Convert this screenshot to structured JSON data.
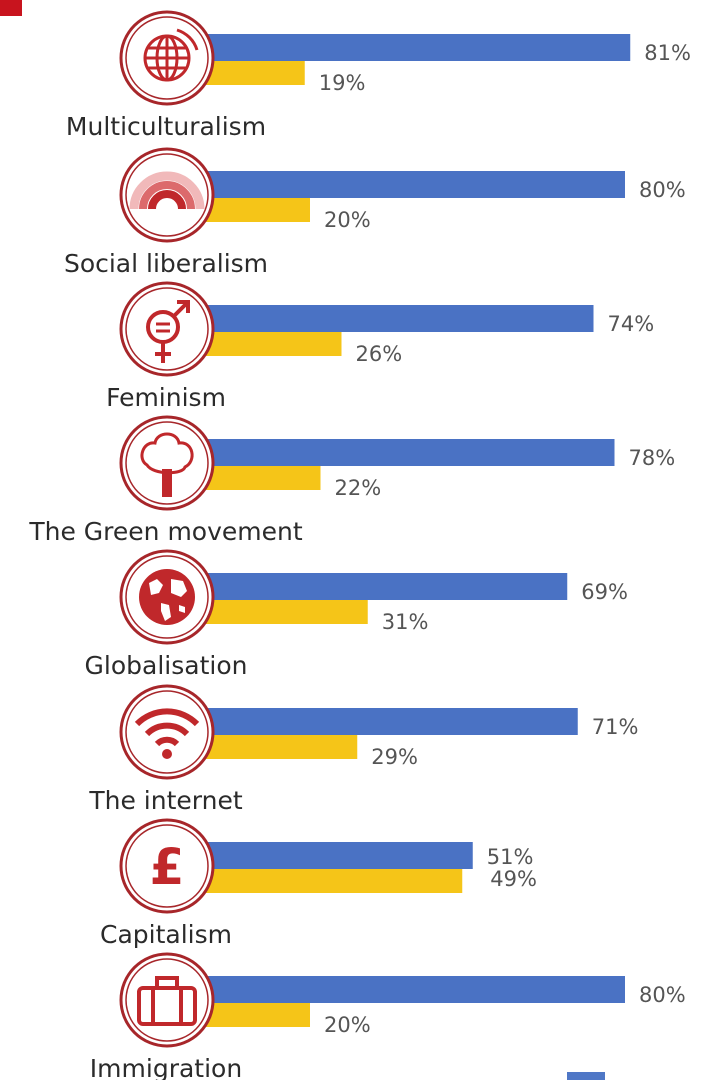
{
  "colors": {
    "series_a": "#4a72c4",
    "series_b": "#f5c518",
    "icon_red": "#c0282b",
    "icon_ring": "#a7262a"
  },
  "chart_data": {
    "type": "bar",
    "orientation": "horizontal",
    "categories": [
      "Multiculturalism",
      "Social liberalism",
      "Feminism",
      "The Green movement",
      "Globalisation",
      "The internet",
      "Capitalism",
      "Immigration"
    ],
    "category_icons": [
      "globe-icon",
      "rainbow-icon",
      "gender-symbol-icon",
      "tree-icon",
      "world-map-icon",
      "wifi-icon",
      "pound-sign-icon",
      "suitcase-icon"
    ],
    "series": [
      {
        "values": [
          81,
          80,
          74,
          78,
          69,
          71,
          51,
          80
        ],
        "labels": [
          "81%",
          "80%",
          "74%",
          "78%",
          "69%",
          "71%",
          "51%",
          "80%"
        ]
      },
      {
        "values": [
          19,
          20,
          26,
          22,
          31,
          29,
          49,
          20
        ],
        "labels": [
          "19%",
          "20%",
          "26%",
          "22%",
          "31%",
          "29%",
          "49%",
          "20%"
        ]
      }
    ],
    "xlim": [
      0,
      100
    ],
    "grid": false
  }
}
